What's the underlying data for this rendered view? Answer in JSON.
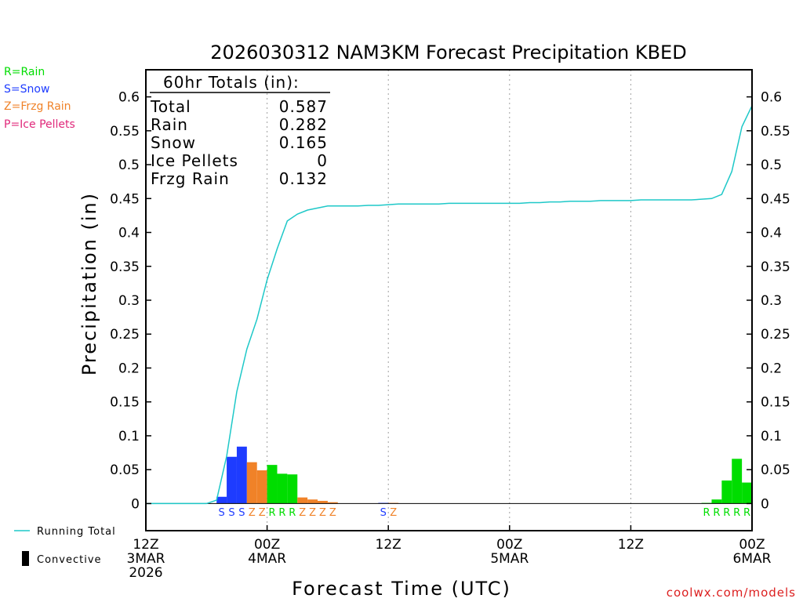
{
  "chart_data": {
    "type": "bar",
    "title": "2026030312 NAM3KM Forecast Precipitation KBED",
    "xlabel": "Forecast Time (UTC)",
    "ylabel": "Precipitation (in)",
    "ylim": [
      -0.04,
      0.64
    ],
    "xlim_hours": [
      0,
      60
    ],
    "y_ticks": [
      {
        "v": 0,
        "label": "0"
      },
      {
        "v": 0.05,
        "label": "0.05"
      },
      {
        "v": 0.1,
        "label": "0.1"
      },
      {
        "v": 0.15,
        "label": "0.15"
      },
      {
        "v": 0.2,
        "label": "0.2"
      },
      {
        "v": 0.25,
        "label": "0.25"
      },
      {
        "v": 0.3,
        "label": "0.3"
      },
      {
        "v": 0.35,
        "label": "0.35"
      },
      {
        "v": 0.4,
        "label": "0.4"
      },
      {
        "v": 0.45,
        "label": "0.45"
      },
      {
        "v": 0.5,
        "label": "0.5"
      },
      {
        "v": 0.55,
        "label": "0.55"
      },
      {
        "v": 0.6,
        "label": "0.6"
      }
    ],
    "x_ticks": [
      {
        "h": 0,
        "lines": [
          "12Z",
          "3MAR",
          "2026"
        ]
      },
      {
        "h": 12,
        "lines": [
          "00Z",
          "4MAR"
        ]
      },
      {
        "h": 24,
        "lines": [
          "12Z"
        ]
      },
      {
        "h": 36,
        "lines": [
          "00Z",
          "5MAR"
        ]
      },
      {
        "h": 48,
        "lines": [
          "12Z"
        ]
      },
      {
        "h": 60,
        "lines": [
          "00Z",
          "6MAR"
        ]
      }
    ],
    "precip_types": [
      {
        "code": "R",
        "name": "Rain",
        "color": "#00dd00",
        "legend": "R=Rain"
      },
      {
        "code": "S",
        "name": "Snow",
        "color": "#1e3cff",
        "legend": "S=Snow"
      },
      {
        "code": "Z",
        "name": "Frzg Rain",
        "color": "#f08228",
        "legend": "Z=Frzg Rain"
      },
      {
        "code": "P",
        "name": "Ice Pellets",
        "color": "#e0287a",
        "legend": "P=Ice Pellets"
      }
    ],
    "hourly_bars": [
      {
        "h": 8,
        "type": "S",
        "value": 0.01
      },
      {
        "h": 9,
        "type": "S",
        "value": 0.069
      },
      {
        "h": 10,
        "type": "S",
        "value": 0.084
      },
      {
        "h": 11,
        "type": "Z",
        "value": 0.061
      },
      {
        "h": 12,
        "type": "Z",
        "value": 0.049
      },
      {
        "h": 13,
        "type": "R",
        "value": 0.057
      },
      {
        "h": 14,
        "type": "R",
        "value": 0.044
      },
      {
        "h": 15,
        "type": "R",
        "value": 0.043
      },
      {
        "h": 16,
        "type": "Z",
        "value": 0.009
      },
      {
        "h": 17,
        "type": "Z",
        "value": 0.006
      },
      {
        "h": 18,
        "type": "Z",
        "value": 0.004
      },
      {
        "h": 19,
        "type": "Z",
        "value": 0.002
      },
      {
        "h": 24,
        "type": "S",
        "value": 0.001
      },
      {
        "h": 25,
        "type": "Z",
        "value": 0.001
      },
      {
        "h": 56,
        "type": "R",
        "value": 0.001
      },
      {
        "h": 57,
        "type": "R",
        "value": 0.006
      },
      {
        "h": 58,
        "type": "R",
        "value": 0.034
      },
      {
        "h": 59,
        "type": "R",
        "value": 0.066
      },
      {
        "h": 60,
        "type": "R",
        "value": 0.031
      }
    ],
    "running_total": {
      "name": "Running Total",
      "color": "#1ec8c8",
      "hours": [
        0,
        1,
        2,
        3,
        4,
        5,
        6,
        7,
        8,
        9,
        10,
        11,
        12,
        13,
        14,
        15,
        16,
        17,
        18,
        19,
        20,
        21,
        22,
        23,
        24,
        25,
        26,
        27,
        28,
        29,
        30,
        31,
        32,
        33,
        34,
        35,
        36,
        37,
        38,
        39,
        40,
        41,
        42,
        43,
        44,
        45,
        46,
        47,
        48,
        49,
        50,
        51,
        52,
        53,
        54,
        55,
        56,
        57,
        58,
        59,
        60
      ],
      "values": [
        0,
        0,
        0,
        0,
        0,
        0,
        0,
        0.005,
        0.07,
        0.165,
        0.228,
        0.272,
        0.33,
        0.376,
        0.417,
        0.427,
        0.433,
        0.436,
        0.439,
        0.439,
        0.439,
        0.439,
        0.44,
        0.44,
        0.441,
        0.442,
        0.442,
        0.442,
        0.442,
        0.442,
        0.443,
        0.443,
        0.443,
        0.443,
        0.443,
        0.443,
        0.443,
        0.443,
        0.444,
        0.444,
        0.445,
        0.445,
        0.446,
        0.446,
        0.446,
        0.447,
        0.447,
        0.447,
        0.447,
        0.448,
        0.448,
        0.448,
        0.448,
        0.448,
        0.448,
        0.449,
        0.45,
        0.456,
        0.49,
        0.556,
        0.587
      ]
    },
    "sequence_labels": {
      "row1": [
        "S",
        "S",
        "S",
        "Z",
        "Z",
        "R",
        "R",
        "R",
        "Z",
        "Z",
        "Z",
        "Z"
      ],
      "row1_start_hour": 8,
      "row2": [
        "S",
        "Z"
      ],
      "row2_start_hour": 24,
      "row3": [
        "R",
        "R",
        "R",
        "R",
        "R"
      ],
      "row3_start_hour": 56
    },
    "totals_box": {
      "title": "60hr Totals (in):",
      "rows": [
        {
          "label": "Total",
          "value": "0.587"
        },
        {
          "label": "Rain",
          "value": "0.282"
        },
        {
          "label": "Snow",
          "value": "0.165"
        },
        {
          "label": "Ice Pellets",
          "value": "0"
        },
        {
          "label": "Frzg Rain",
          "value": "0.132"
        }
      ]
    },
    "legend": {
      "running_total_label": "Running Total",
      "convective_label": "Convective",
      "convective_color": "#000000"
    },
    "credit": "coolwx.com/models",
    "credit_color": "#dc1e1e"
  }
}
